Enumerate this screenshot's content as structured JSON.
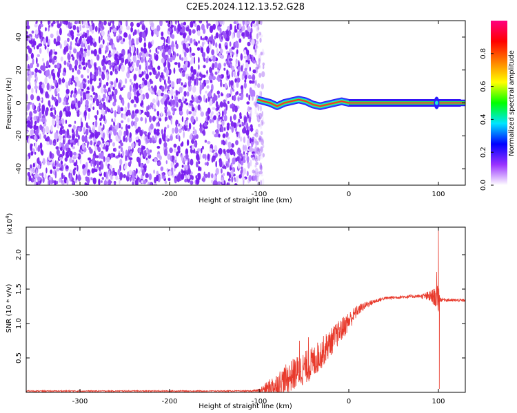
{
  "title": "C2E5.2024.112.13.52.G28",
  "chart_data": [
    {
      "type": "heatmap",
      "xlabel": "Height of straight line (km)",
      "ylabel": "Frequency (Hz)",
      "xlim": [
        -360,
        130
      ],
      "ylim": [
        -50,
        50
      ],
      "xticks": [
        -300,
        -200,
        -100,
        0,
        100
      ],
      "yticks": [
        -40,
        -20,
        0,
        20,
        40
      ],
      "noise_region_x": [
        -360,
        -95
      ],
      "signal_track": {
        "x": [
          -102,
          -95,
          -88,
          -80,
          -72,
          -64,
          -56,
          -48,
          -40,
          -32,
          -24,
          -16,
          -8,
          0,
          20,
          40,
          60,
          80,
          100,
          125
        ],
        "freq": [
          2,
          1,
          0,
          -2,
          0,
          1,
          2,
          1,
          -1,
          -2,
          -1,
          0,
          1,
          0,
          0,
          0,
          0,
          0,
          0,
          0
        ]
      },
      "colorbar": {
        "label": "Normalized spectral amplitude",
        "ticks": [
          "0.0",
          "0.2",
          "0.4",
          "0.6",
          "0.8"
        ],
        "range": [
          0,
          1
        ],
        "colors": [
          "#ffffff",
          "#9933ff",
          "#0000ff",
          "#00e5ff",
          "#00ff00",
          "#ffff00",
          "#ff8000",
          "#ff0000",
          "#ff0080"
        ]
      }
    },
    {
      "type": "line",
      "xlabel": "Height of straight line (km)",
      "ylabel": "SNR (10 * v/v)",
      "yscale_label": "(x10",
      "yscale_exp": "4",
      "yscale_close": ")",
      "xlim": [
        -360,
        130
      ],
      "ylim": [
        0,
        2.4
      ],
      "xticks": [
        -300,
        -200,
        -100,
        0,
        100
      ],
      "yticks": [
        "0.5",
        "1.0",
        "1.5",
        "2.0"
      ],
      "ytick_values": [
        0.5,
        1.0,
        1.5,
        2.0
      ],
      "color": "#e8392b",
      "envelope": {
        "x": [
          -360,
          -110,
          -100,
          -80,
          -60,
          -40,
          -30,
          -20,
          -10,
          0,
          10,
          20,
          30,
          40,
          60,
          80,
          95,
          100,
          102,
          105,
          115,
          130
        ],
        "y": [
          0.02,
          0.02,
          0.03,
          0.12,
          0.3,
          0.45,
          0.6,
          0.75,
          0.9,
          1.05,
          1.2,
          1.28,
          1.33,
          1.37,
          1.39,
          1.4,
          1.4,
          1.4,
          1.35,
          1.35,
          1.34,
          1.34
        ],
        "noise": [
          0.01,
          0.01,
          0.03,
          0.25,
          0.3,
          0.3,
          0.28,
          0.25,
          0.22,
          0.18,
          0.1,
          0.06,
          0.04,
          0.03,
          0.03,
          0.03,
          0.15,
          0.3,
          0.05,
          0.03,
          0.03,
          0.03
        ]
      },
      "spikes": [
        {
          "x": 100,
          "y": 2.35
        },
        {
          "x": 101,
          "y": 0.05
        },
        {
          "x": 98,
          "y": 1.75
        },
        {
          "x": -55,
          "y": 0.75
        },
        {
          "x": -45,
          "y": 0.8
        }
      ]
    }
  ]
}
